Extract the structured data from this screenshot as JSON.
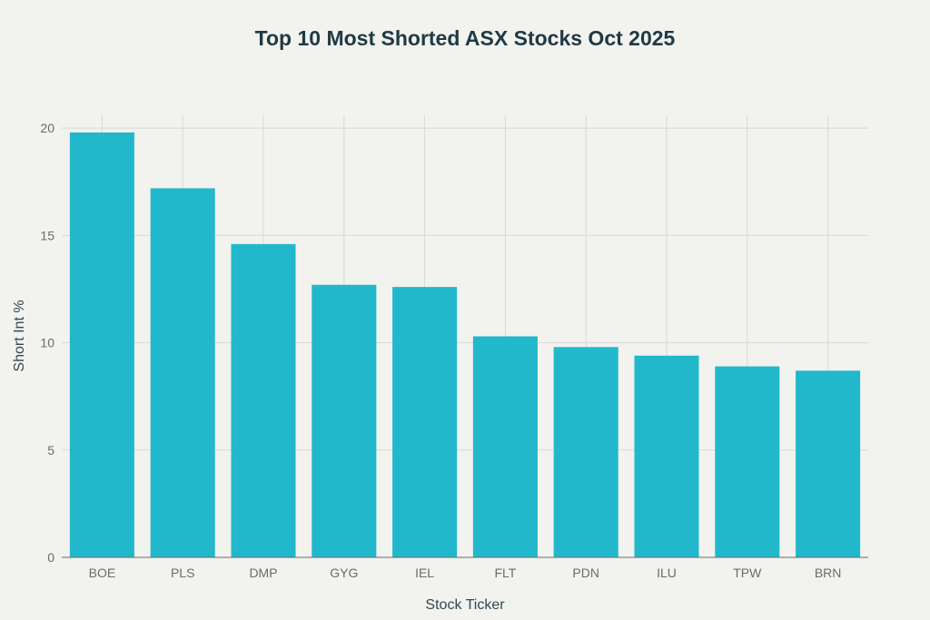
{
  "chart_data": {
    "type": "bar",
    "title": "Top 10 Most Shorted ASX Stocks Oct 2025",
    "xlabel": "Stock Ticker",
    "ylabel": "Short Int %",
    "categories": [
      "BOE",
      "PLS",
      "DMP",
      "GYG",
      "IEL",
      "FLT",
      "PDN",
      "ILU",
      "TPW",
      "BRN"
    ],
    "values": [
      19.8,
      17.2,
      14.6,
      12.7,
      12.6,
      10.3,
      9.8,
      9.4,
      8.9,
      8.7
    ],
    "ylim": [
      0,
      20.6
    ],
    "yticks": [
      0,
      5,
      10,
      15,
      20
    ],
    "grid": true,
    "bar_color": "#22b8cc",
    "grid_color": "#d9d9d4",
    "axis_color": "#6b6b6b"
  }
}
